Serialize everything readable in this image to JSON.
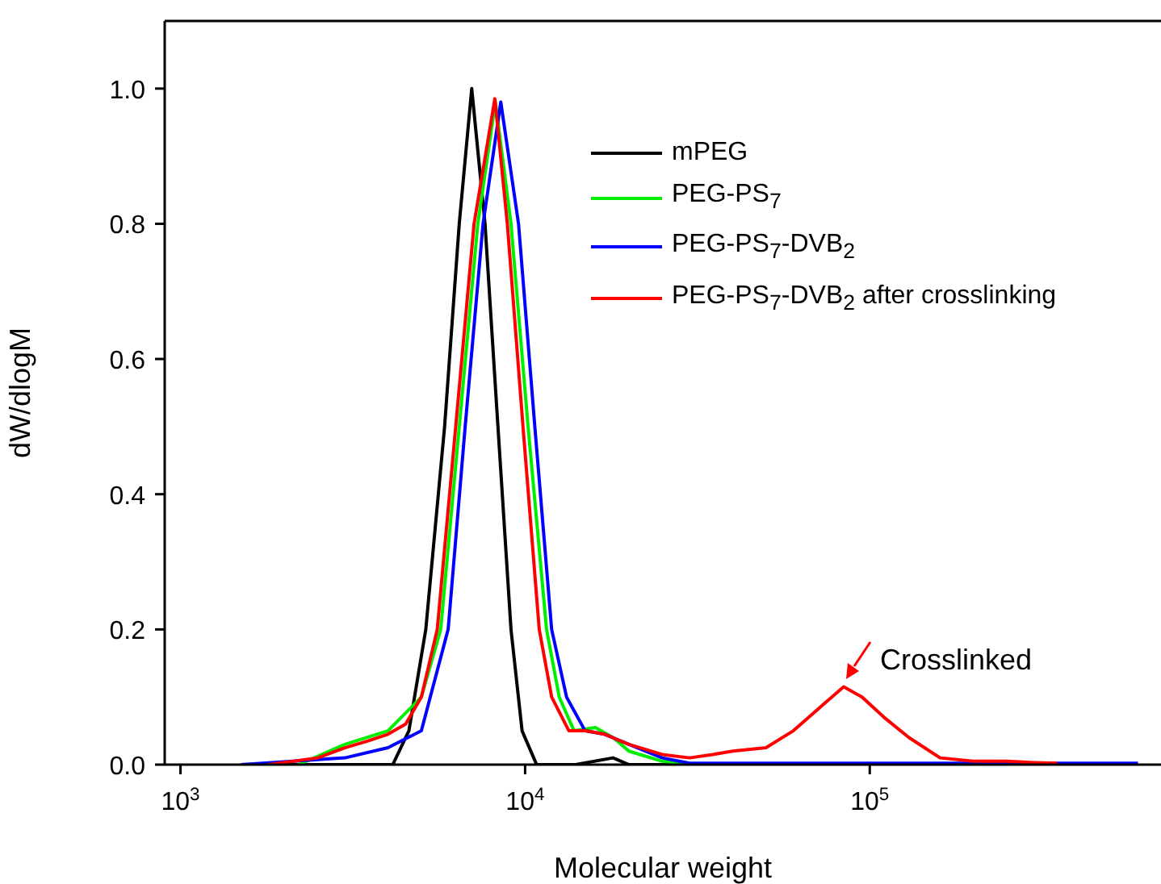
{
  "chart_data": {
    "type": "line",
    "xlabel": "Molecular weight",
    "ylabel": "dW/dlogM",
    "log": "x",
    "xlim": [
      900,
      700000
    ],
    "ylim": [
      0,
      1.1
    ],
    "xticks": [
      {
        "value": 1000,
        "label": "10$^{3}$"
      },
      {
        "value": 10000,
        "label": "10$^{4}$"
      },
      {
        "value": 100000,
        "label": "10$^{5}$"
      }
    ],
    "yticks": [
      {
        "value": 0,
        "label": "0.0"
      },
      {
        "value": 0.2,
        "label": "0.2"
      },
      {
        "value": 0.4,
        "label": "0.4"
      },
      {
        "value": 0.6,
        "label": "0.6"
      },
      {
        "value": 0.8,
        "label": "0.8"
      },
      {
        "value": 1,
        "label": "1.0"
      }
    ],
    "legend": "top right",
    "marker": "none",
    "line_style": "solid",
    "annotations": [
      "Crosslinked"
    ],
    "series": [
      {
        "name": "mPEG",
        "color": "#000000",
        "x": [
          1500,
          3000,
          4130,
          4600,
          5150,
          5840,
          6440,
          7000,
          7650,
          8340,
          9100,
          9800,
          10800,
          14000,
          18000,
          20000,
          30000
        ],
        "values": [
          0,
          0,
          0,
          0.05,
          0.2,
          0.5,
          0.8,
          1.0,
          0.8,
          0.5,
          0.2,
          0.05,
          0,
          0,
          0.01,
          0,
          0
        ]
      },
      {
        "name": "PEG-PS$_{7}$",
        "color": "#00ee00",
        "x": [
          2200,
          3000,
          4000,
          5000,
          5690,
          6440,
          7290,
          8200,
          9100,
          10200,
          11540,
          12560,
          13870,
          16000,
          18000,
          20000,
          25000,
          30000
        ],
        "values": [
          0,
          0.03,
          0.05,
          0.1,
          0.2,
          0.5,
          0.8,
          0.98,
          0.8,
          0.5,
          0.2,
          0.1,
          0.05,
          0.055,
          0.04,
          0.02,
          0.005,
          0
        ]
      },
      {
        "name": "PEG-PS$_{7}$-DVB$_{2}$",
        "color": "#0000ff",
        "x": [
          1500,
          3000,
          4000,
          5000,
          5980,
          6700,
          7550,
          8500,
          9570,
          10670,
          11940,
          13190,
          14930,
          17000,
          20000,
          25000,
          30000,
          100000,
          600000
        ],
        "values": [
          0,
          0.01,
          0.025,
          0.05,
          0.2,
          0.5,
          0.8,
          0.98,
          0.8,
          0.5,
          0.2,
          0.1,
          0.05,
          0.045,
          0.03,
          0.01,
          0.002,
          0.002,
          0.002
        ]
      },
      {
        "name": "PEG-PS$_{7}$-DVB$_{2}$ after crosslinking",
        "color": "#ff0000",
        "x": [
          1800,
          2500,
          3000,
          3500,
          4000,
          4500,
          5000,
          5560,
          6290,
          7110,
          8170,
          8880,
          9860,
          10990,
          11940,
          13400,
          15000,
          17000,
          20000,
          25000,
          30000,
          35000,
          40000,
          50000,
          60000,
          70000,
          84000,
          95000,
          110000,
          130000,
          160000,
          200000,
          250000,
          300000,
          350000
        ],
        "values": [
          0,
          0.01,
          0.025,
          0.035,
          0.045,
          0.06,
          0.1,
          0.2,
          0.5,
          0.8,
          0.985,
          0.8,
          0.5,
          0.2,
          0.1,
          0.05,
          0.05,
          0.045,
          0.03,
          0.015,
          0.01,
          0.015,
          0.02,
          0.025,
          0.05,
          0.08,
          0.115,
          0.1,
          0.07,
          0.04,
          0.01,
          0.005,
          0.005,
          0.003,
          0.002
        ]
      }
    ]
  }
}
